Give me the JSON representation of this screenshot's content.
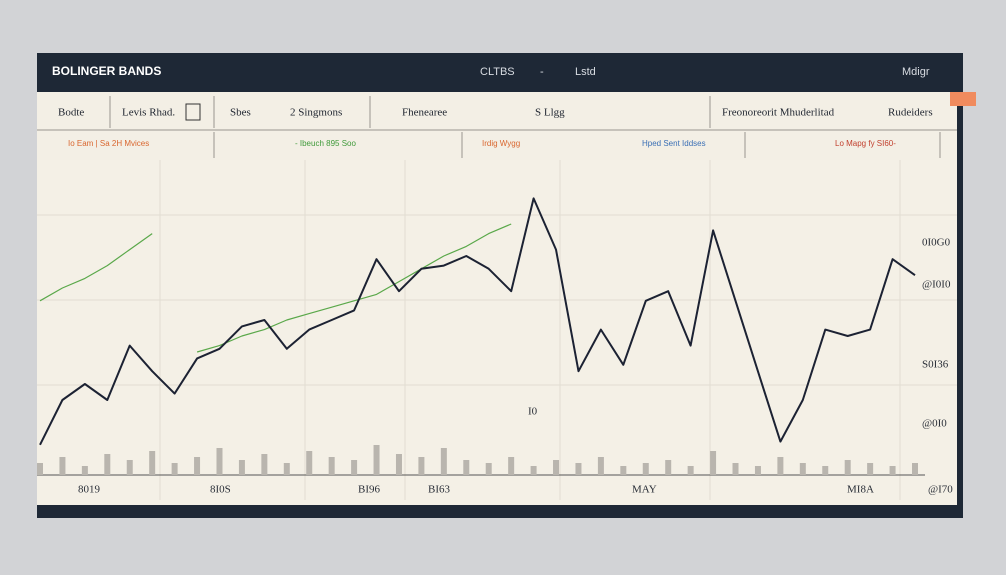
{
  "header": {
    "title": "BOLINGER BANDS",
    "center": [
      "CLTBS",
      "-",
      "Lstd"
    ],
    "right": "Mdigr"
  },
  "toolbar": [
    "Bodte",
    "Levis Rhad.",
    "Sbes",
    "2 Singmons",
    "Fhenearee",
    "S Llgg",
    "Freonoreorit Mhuderlitad",
    "Rudeiders"
  ],
  "subbar": [
    "Io Eam | Sa 2H Mvices",
    "- Ibeuch 895 Soo",
    "Irdig Wygg",
    "Hped Sent Iddses",
    "Lo Mapg fy SI60-"
  ],
  "chart": {
    "price": [
      11,
      25,
      30,
      25,
      42,
      34,
      27,
      38,
      41,
      48,
      50,
      41,
      47,
      50,
      53,
      69,
      59,
      66,
      67,
      70,
      66,
      59,
      88,
      72,
      34,
      47,
      36,
      56,
      59,
      42,
      78,
      56,
      34,
      12,
      25,
      47,
      45,
      47,
      69,
      64
    ],
    "trend": [
      56,
      60,
      63,
      67,
      72,
      77,
      null,
      40,
      42,
      45,
      47,
      50,
      52,
      54,
      56,
      58,
      62,
      66,
      70,
      73,
      77,
      80,
      null,
      null,
      null,
      null,
      null,
      null,
      null,
      null,
      null,
      null,
      null,
      null,
      null,
      null,
      null,
      null,
      null,
      null
    ],
    "volume": [
      4,
      6,
      3,
      7,
      5,
      8,
      4,
      6,
      9,
      5,
      7,
      4,
      8,
      6,
      5,
      10,
      7,
      6,
      9,
      5,
      4,
      6,
      3,
      5,
      4,
      6,
      3,
      4,
      5,
      3,
      8,
      4,
      3,
      6,
      4,
      3,
      5,
      4,
      3,
      4
    ],
    "price_color": "#1c2233",
    "trend_color": "#5aa84a",
    "volume_color": "#b9b5ae",
    "y_labels": [
      "0I0G0",
      "@I0I0",
      "S0I36",
      "@0I0"
    ],
    "x_labels": [
      "8019",
      "8I0S",
      "BI96",
      "BI63",
      "MAY",
      "MI8A",
      "@I70"
    ],
    "note": "I0"
  }
}
